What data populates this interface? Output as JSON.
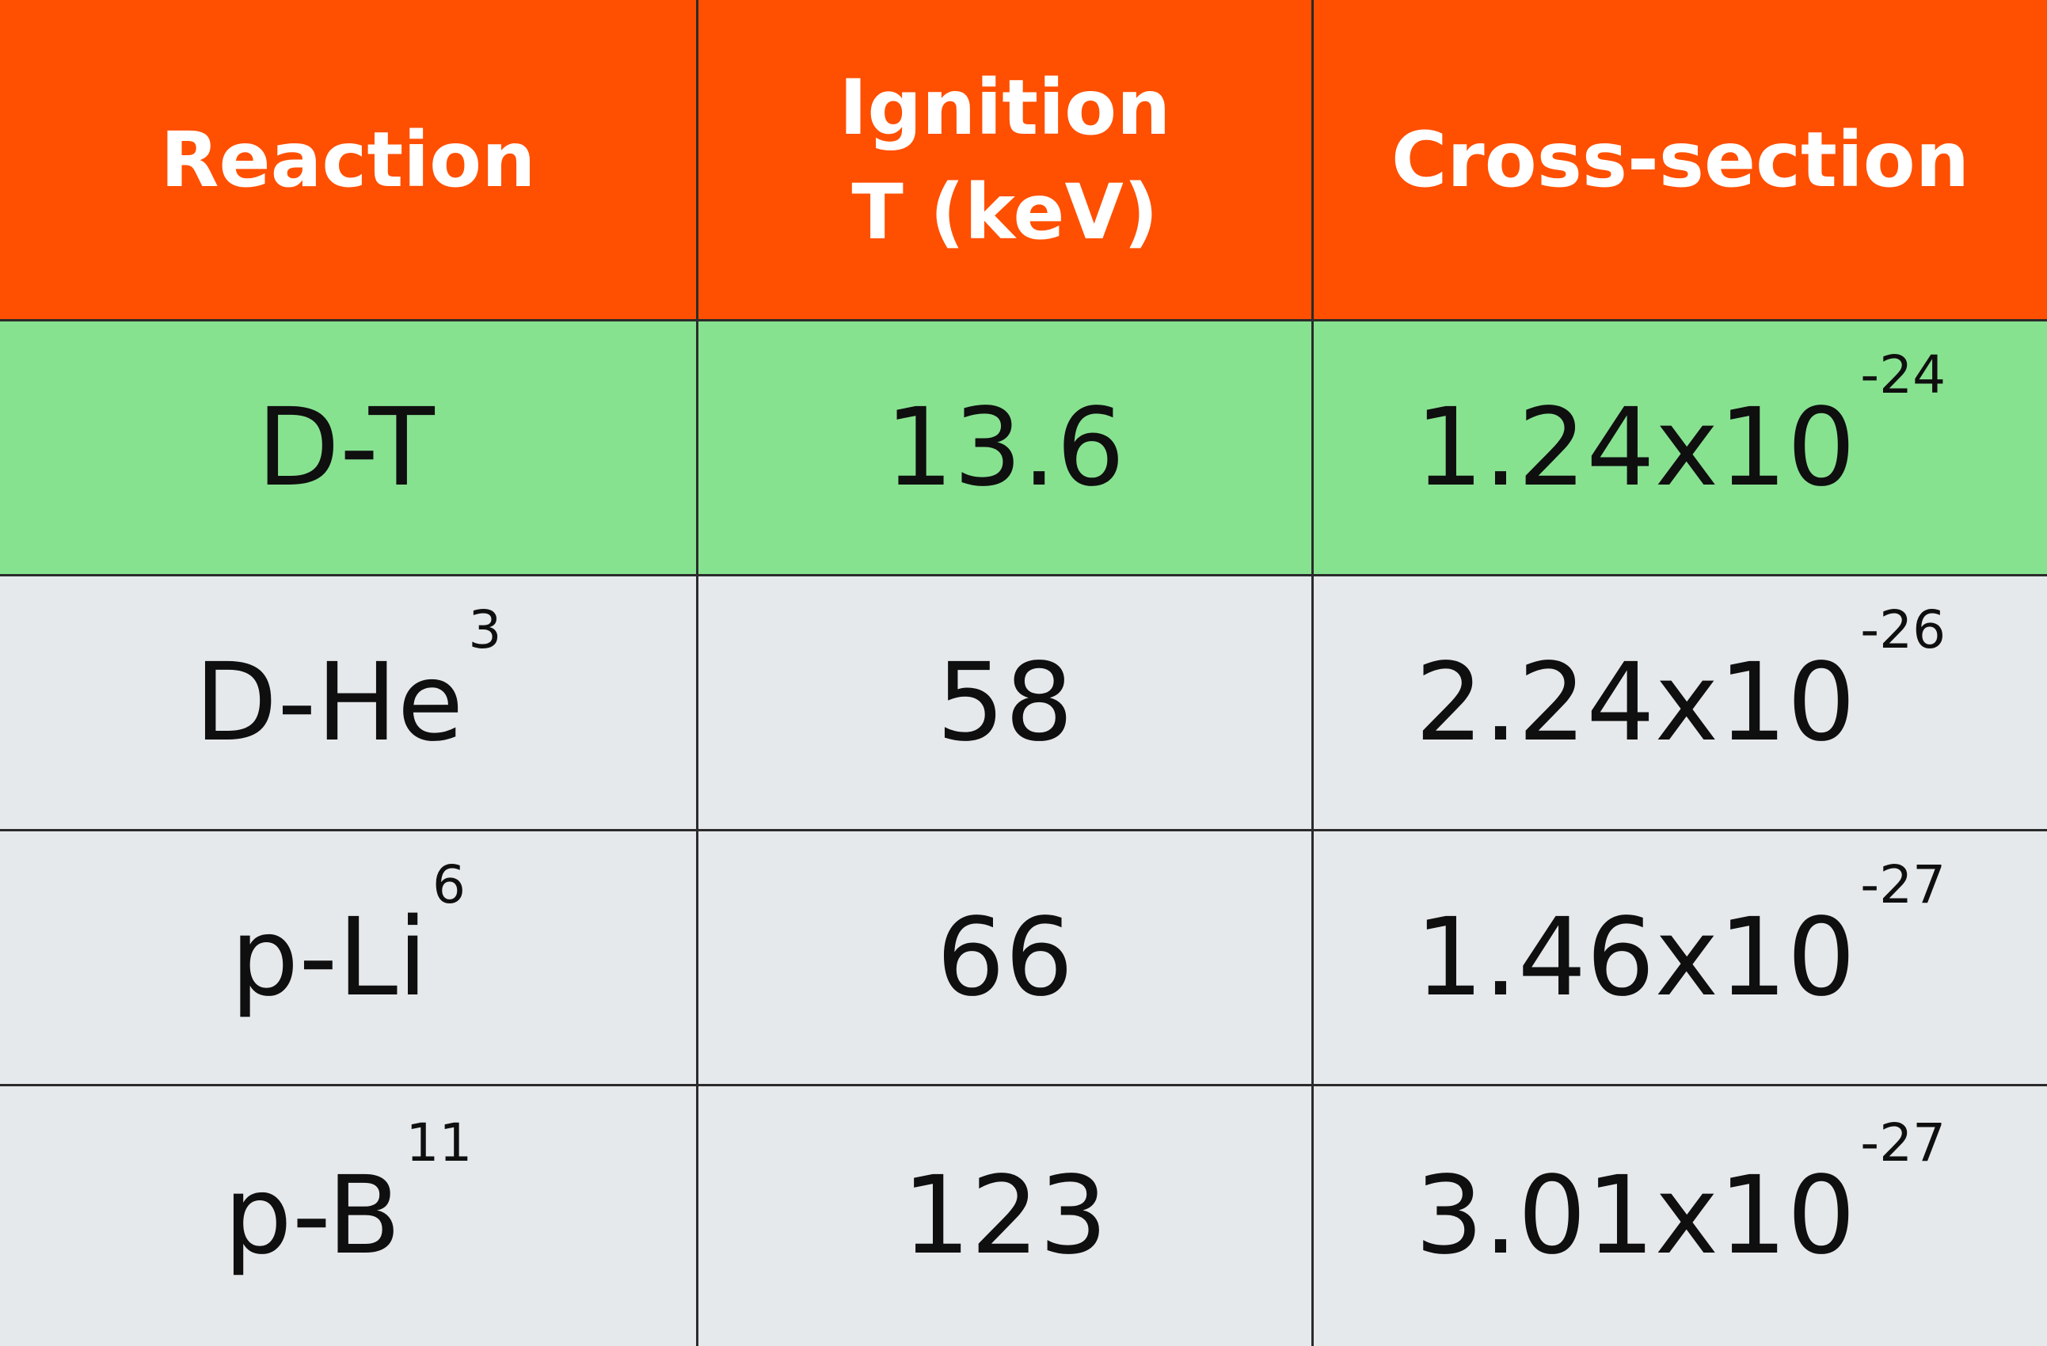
{
  "table": {
    "headers": [
      "Reaction",
      "Ignition T (keV)",
      "Cross-section"
    ],
    "rows": [
      {
        "reaction": "D-T",
        "reaction_sup": "",
        "ignition_t": "13.6",
        "cross_section": "1.24x10",
        "cross_section_exp": "-24",
        "highlighted": true
      },
      {
        "reaction": "D-He",
        "reaction_sup": "3",
        "ignition_t": "58",
        "cross_section": "2.24x10",
        "cross_section_exp": "-26",
        "highlighted": false
      },
      {
        "reaction": "p-Li",
        "reaction_sup": "6",
        "ignition_t": "66",
        "cross_section": "1.46x10",
        "cross_section_exp": "-27",
        "highlighted": false
      },
      {
        "reaction": "p-B",
        "reaction_sup": "11",
        "ignition_t": "123",
        "cross_section": "3.01x10",
        "cross_section_exp": "-27",
        "highlighted": false
      }
    ]
  },
  "colors": {
    "header_bg": "#ff4f00",
    "highlight_row_bg": "#87e290",
    "row_bg": "#e6e9eb",
    "border": "#2b2b2b"
  }
}
